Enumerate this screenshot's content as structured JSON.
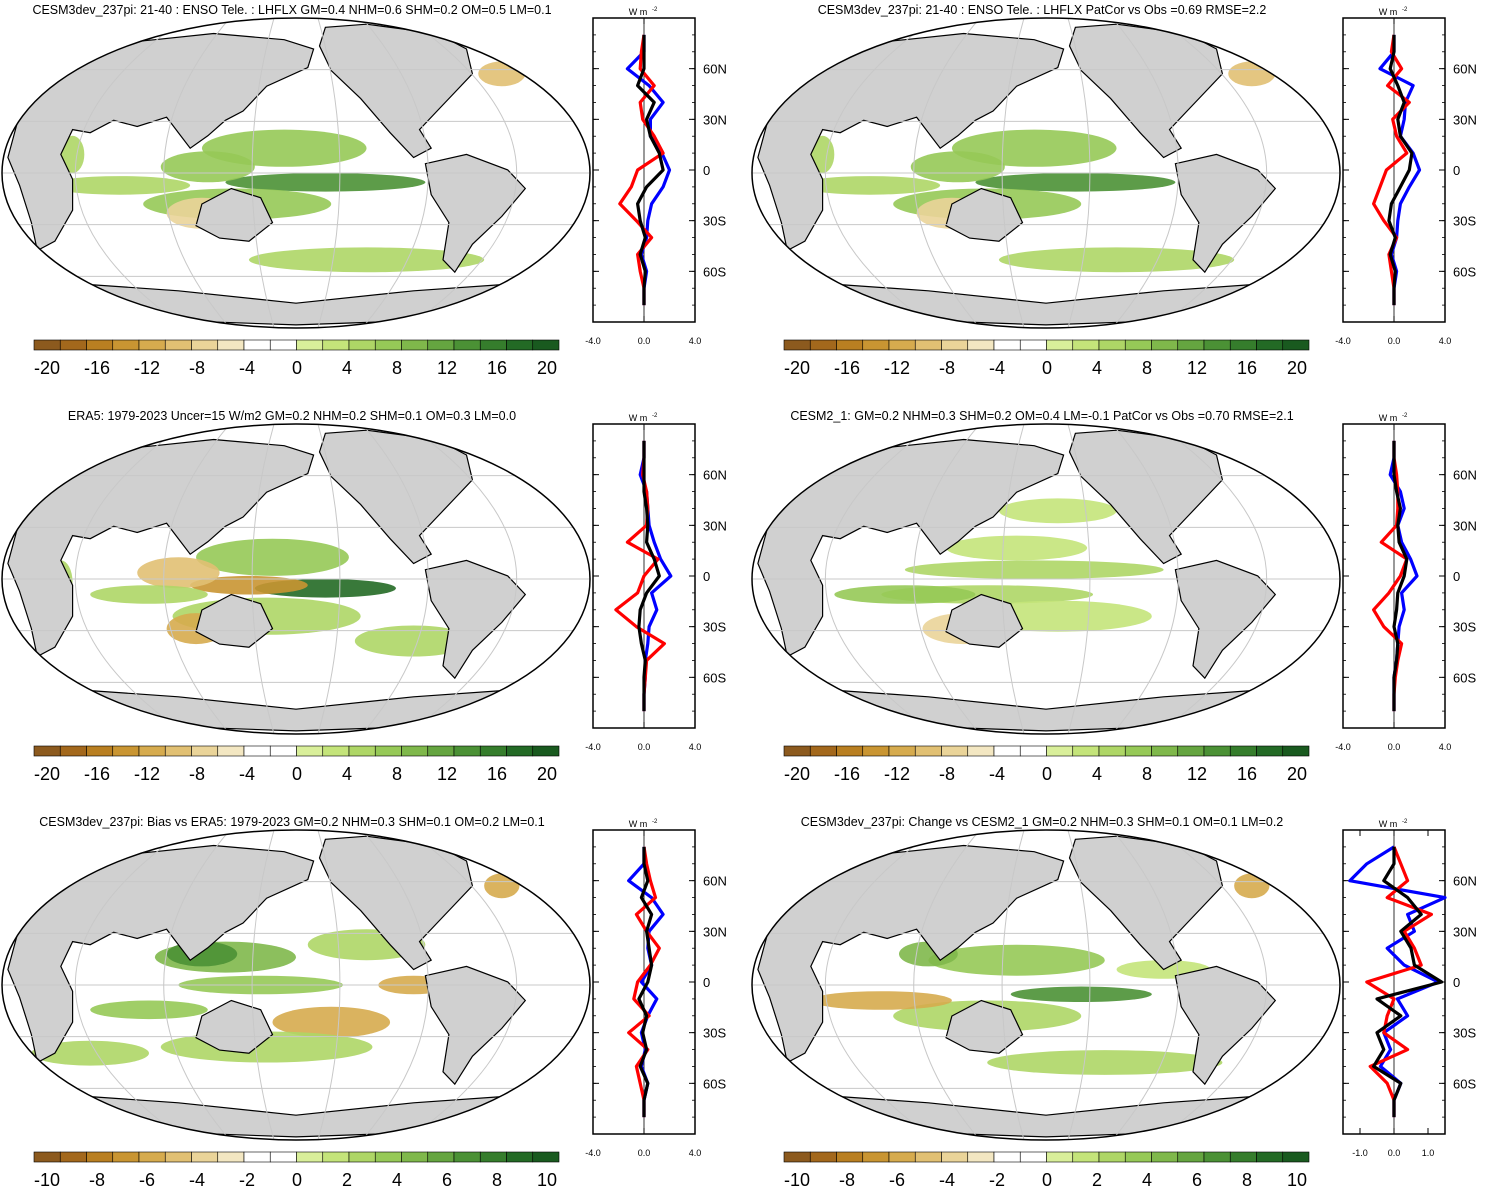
{
  "colors": {
    "land": "#d0d0d0",
    "grid": "#c8c8c8",
    "obs_line": "#0000ff",
    "model_line": "#000000",
    "change_line": "#ff0000",
    "palette": [
      "#8c5a1e",
      "#a3681c",
      "#b97f21",
      "#c99532",
      "#d6ab4e",
      "#e1c073",
      "#ead499",
      "#f3e7c2",
      "#ffffff",
      "#ffffff",
      "#d9ef9a",
      "#c4e47a",
      "#aed666",
      "#96c957",
      "#7fb84b",
      "#65a540",
      "#4b9135",
      "#357d2c",
      "#236a25",
      "#195a1f"
    ]
  },
  "panels": [
    {
      "id": "cesm3-lhflx",
      "title": "CESM3dev_237pi: 21-40 : ENSO Tele. : LHFLX GM=0.4 NHM=0.6 SHM=0.2 OM=0.5 LM=0.1",
      "colorbar_labels": [
        "-20",
        "-16",
        "-12",
        "-8",
        "-4",
        "0",
        "4",
        "8",
        "12",
        "16",
        "20"
      ],
      "lat_labels": [
        "60N",
        "30N",
        "0",
        "30S",
        "60S"
      ],
      "profile_unit": "W m",
      "profile_unit_sup": "-2",
      "profile_xticks": [
        "-4.0",
        "0.0",
        "4.0"
      ]
    },
    {
      "id": "cesm3-patcor",
      "title": "CESM3dev_237pi: 21-40 : ENSO Tele. : LHFLX PatCor vs Obs =0.69 RMSE=2.2",
      "colorbar_labels": [
        "-20",
        "-16",
        "-12",
        "-8",
        "-4",
        "0",
        "4",
        "8",
        "12",
        "16",
        "20"
      ],
      "lat_labels": [
        "60N",
        "30N",
        "0",
        "30S",
        "60S"
      ],
      "profile_unit": "W m",
      "profile_unit_sup": "-2",
      "profile_xticks": [
        "-4.0",
        "0.0",
        "4.0"
      ]
    },
    {
      "id": "era5",
      "title": "ERA5: 1979-2023 Uncer=15 W/m2 GM=0.2 NHM=0.2 SHM=0.1 OM=0.3 LM=0.0",
      "colorbar_labels": [
        "-20",
        "-16",
        "-12",
        "-8",
        "-4",
        "0",
        "4",
        "8",
        "12",
        "16",
        "20"
      ],
      "lat_labels": [
        "60N",
        "30N",
        "0",
        "30S",
        "60S"
      ],
      "profile_unit": "W m",
      "profile_unit_sup": "-2",
      "profile_xticks": [
        "-4.0",
        "0.0",
        "4.0"
      ]
    },
    {
      "id": "cesm2",
      "title": "CESM2_1: GM=0.2 NHM=0.3 SHM=0.2 OM=0.4 LM=-0.1 PatCor vs Obs =0.70 RMSE=2.1",
      "colorbar_labels": [
        "-20",
        "-16",
        "-12",
        "-8",
        "-4",
        "0",
        "4",
        "8",
        "12",
        "16",
        "20"
      ],
      "lat_labels": [
        "60N",
        "30N",
        "0",
        "30S",
        "60S"
      ],
      "profile_unit": "W m",
      "profile_unit_sup": "-2",
      "profile_xticks": [
        "-4.0",
        "0.0",
        "4.0"
      ]
    },
    {
      "id": "bias",
      "title": "CESM3dev_237pi: Bias vs ERA5: 1979-2023 GM=0.2 NHM=0.3 SHM=0.1 OM=0.2 LM=0.1",
      "colorbar_labels": [
        "-10",
        "-8",
        "-6",
        "-4",
        "-2",
        "0",
        "2",
        "4",
        "6",
        "8",
        "10"
      ],
      "lat_labels": [
        "60N",
        "30N",
        "0",
        "30S",
        "60S"
      ],
      "profile_unit": "W m",
      "profile_unit_sup": "-2",
      "profile_xticks": [
        "-4.0",
        "0.0",
        "4.0"
      ]
    },
    {
      "id": "change",
      "title": "CESM3dev_237pi: Change vs CESM2_1 GM=0.2 NHM=0.3 SHM=0.1 OM=0.1 LM=0.2",
      "colorbar_labels": [
        "-10",
        "-8",
        "-6",
        "-4",
        "-2",
        "0",
        "2",
        "4",
        "6",
        "8",
        "10"
      ],
      "lat_labels": [
        "60N",
        "30N",
        "0",
        "30S",
        "60S"
      ],
      "profile_unit": "W m",
      "profile_unit_sup": "-2",
      "profile_xticks": [
        "-1.0",
        "0.0",
        "1.0"
      ]
    }
  ],
  "chart_data": [
    {
      "type": "heatmap",
      "title": "CESM3dev_237pi: 21-40 : ENSO Tele. : LHFLX GM=0.4 NHM=0.6 SHM=0.2 OM=0.5 LM=0.1",
      "colorbar_range": [
        -20,
        20
      ],
      "colorbar_ticks": [
        -20,
        -16,
        -12,
        -8,
        -4,
        0,
        4,
        8,
        12,
        16,
        20
      ],
      "profile": {
        "lat": [
          80,
          70,
          60,
          50,
          40,
          30,
          20,
          10,
          0,
          -10,
          -20,
          -30,
          -40,
          -50,
          -60,
          -70,
          -80
        ],
        "xlim": [
          -4,
          4
        ],
        "series": [
          {
            "name": "black",
            "values": [
              0,
              0,
              0,
              -0.5,
              0.8,
              0.2,
              0.5,
              1.2,
              1.5,
              0.2,
              -0.5,
              -0.3,
              0.1,
              -0.3,
              0.1,
              0,
              0
            ]
          },
          {
            "name": "blue",
            "values": [
              0,
              0,
              -1.3,
              0.4,
              1.5,
              0.5,
              0.5,
              1.4,
              2.0,
              1.5,
              0.6,
              0.3,
              0.2,
              -0.2,
              0.2,
              0,
              0
            ]
          },
          {
            "name": "red",
            "values": [
              0,
              -0.2,
              -0.3,
              0.8,
              -0.3,
              -0.1,
              0.8,
              1.5,
              -0.5,
              -1.0,
              -1.9,
              -0.6,
              0.6,
              -0.5,
              -0.3,
              0,
              0
            ]
          }
        ]
      }
    },
    {
      "type": "heatmap",
      "title": "CESM3dev_237pi: 21-40 : ENSO Tele. : LHFLX PatCor vs Obs =0.69 RMSE=2.2",
      "colorbar_range": [
        -20,
        20
      ],
      "colorbar_ticks": [
        -20,
        -16,
        -12,
        -8,
        -4,
        0,
        4,
        8,
        12,
        16,
        20
      ],
      "profile": {
        "lat": [
          80,
          70,
          60,
          50,
          40,
          30,
          20,
          10,
          0,
          -10,
          -20,
          -30,
          -40,
          -50,
          -60,
          -70,
          -80
        ],
        "xlim": [
          -4,
          4
        ],
        "series": [
          {
            "name": "black",
            "values": [
              0,
              0,
              -0.3,
              0.3,
              0.8,
              0.3,
              0.5,
              1.4,
              1.2,
              0.5,
              -0.2,
              -0.4,
              0.1,
              -0.3,
              0.1,
              0,
              0
            ]
          },
          {
            "name": "blue",
            "values": [
              0,
              0,
              -1.1,
              1.5,
              0.9,
              0.8,
              0.5,
              1.5,
              2.0,
              1.2,
              0.5,
              0.3,
              0.2,
              -0.2,
              0.2,
              0,
              0
            ]
          },
          {
            "name": "red",
            "values": [
              0,
              -0.2,
              0.6,
              -0.5,
              1.2,
              -0.1,
              0.2,
              1.0,
              -0.6,
              -1.1,
              -1.6,
              -0.8,
              0.2,
              -0.4,
              -0.2,
              0,
              0
            ]
          }
        ]
      }
    },
    {
      "type": "heatmap",
      "title": "ERA5: 1979-2023 Uncer=15 W/m2 GM=0.2 NHM=0.2 SHM=0.1 OM=0.3 LM=0.0",
      "colorbar_range": [
        -20,
        20
      ],
      "colorbar_ticks": [
        -20,
        -16,
        -12,
        -8,
        -4,
        0,
        4,
        8,
        12,
        16,
        20
      ],
      "profile": {
        "lat": [
          80,
          70,
          60,
          50,
          40,
          30,
          20,
          10,
          0,
          -10,
          -20,
          -30,
          -40,
          -50,
          -60,
          -70,
          -80
        ],
        "xlim": [
          -4,
          4
        ],
        "series": [
          {
            "name": "black",
            "values": [
              0,
              0,
              0,
              0,
              0.2,
              0.3,
              0.2,
              0.8,
              1.2,
              0.2,
              -0.3,
              -0.4,
              -0.2,
              0.1,
              0,
              0,
              0
            ]
          },
          {
            "name": "blue",
            "values": [
              0,
              0,
              -0.3,
              0.2,
              0.3,
              0.4,
              0.8,
              1.3,
              2.1,
              0.6,
              1.0,
              0.4,
              0.3,
              0.1,
              0.1,
              0,
              0
            ]
          },
          {
            "name": "red",
            "values": [
              0,
              0,
              -0.1,
              0.2,
              0.3,
              0.2,
              -1.3,
              1.1,
              0,
              -0.5,
              -2.2,
              -0.6,
              1.6,
              0.2,
              0.1,
              0,
              0
            ]
          }
        ]
      }
    },
    {
      "type": "heatmap",
      "title": "CESM2_1: GM=0.2 NHM=0.3 SHM=0.2 OM=0.4 LM=-0.1 PatCor vs Obs =0.70 RMSE=2.1",
      "colorbar_range": [
        -20,
        20
      ],
      "colorbar_ticks": [
        -20,
        -16,
        -12,
        -8,
        -4,
        0,
        4,
        8,
        12,
        16,
        20
      ],
      "profile": {
        "lat": [
          80,
          70,
          60,
          50,
          40,
          30,
          20,
          10,
          0,
          -10,
          -20,
          -30,
          -40,
          -50,
          -60,
          -70,
          -80
        ],
        "xlim": [
          -4,
          4
        ],
        "series": [
          {
            "name": "black",
            "values": [
              0,
              0,
              0,
              0.2,
              0.5,
              0.3,
              0.4,
              1.0,
              0.8,
              0.3,
              0.2,
              0,
              0.3,
              0.2,
              0,
              0,
              0
            ]
          },
          {
            "name": "blue",
            "values": [
              0,
              0,
              -0.3,
              0.5,
              0.8,
              0.3,
              0.6,
              1.3,
              1.8,
              0.6,
              0.8,
              0.4,
              0.3,
              0.2,
              0,
              0,
              0
            ]
          },
          {
            "name": "red",
            "values": [
              0,
              0,
              0.2,
              0.3,
              0.3,
              0.2,
              -1.0,
              1.0,
              0.5,
              -0.4,
              -1.6,
              -0.8,
              0.6,
              0.3,
              0.1,
              0,
              0
            ]
          }
        ]
      }
    },
    {
      "type": "heatmap",
      "title": "CESM3dev_237pi: Bias vs ERA5: 1979-2023 GM=0.2 NHM=0.3 SHM=0.1 OM=0.2 LM=0.1",
      "colorbar_range": [
        -10,
        10
      ],
      "colorbar_ticks": [
        -10,
        -8,
        -6,
        -4,
        -2,
        0,
        2,
        4,
        6,
        8,
        10
      ],
      "profile": {
        "lat": [
          80,
          70,
          60,
          50,
          40,
          30,
          20,
          10,
          0,
          -10,
          -20,
          -30,
          -40,
          -50,
          -60,
          -70,
          -80
        ],
        "xlim": [
          -4,
          4
        ],
        "series": [
          {
            "name": "black",
            "values": [
              0,
              0,
              0.3,
              -0.2,
              0.6,
              0.2,
              0.4,
              0.6,
              0.3,
              -0.4,
              0.2,
              -0.1,
              0.2,
              -0.3,
              0.3,
              0,
              0
            ]
          },
          {
            "name": "blue",
            "values": [
              0,
              0,
              -1.2,
              0.6,
              1.5,
              0.4,
              0.3,
              0.6,
              -0.2,
              1.0,
              0.3,
              -0.2,
              0.1,
              -0.2,
              0.3,
              0,
              0
            ]
          },
          {
            "name": "red",
            "values": [
              0,
              0.2,
              0.5,
              0.9,
              -0.6,
              0.2,
              1.2,
              0.5,
              -0.5,
              -0.8,
              0.4,
              -1.2,
              0.3,
              -0.6,
              -0.3,
              0,
              0
            ]
          }
        ]
      }
    },
    {
      "type": "heatmap",
      "title": "CESM3dev_237pi: Change vs CESM2_1 GM=0.2 NHM=0.3 SHM=0.1 OM=0.1 LM=0.2",
      "colorbar_range": [
        -10,
        10
      ],
      "colorbar_ticks": [
        -10,
        -8,
        -6,
        -4,
        -2,
        0,
        2,
        4,
        6,
        8,
        10
      ],
      "profile": {
        "lat": [
          80,
          70,
          60,
          50,
          40,
          30,
          20,
          10,
          0,
          -10,
          -20,
          -30,
          -40,
          -50,
          -60,
          -70,
          -80
        ],
        "xlim": [
          -1.5,
          1.5
        ],
        "series": [
          {
            "name": "black",
            "values": [
              0,
              0,
              -0.3,
              0.4,
              0.8,
              0.2,
              0.5,
              0.6,
              1.4,
              -0.5,
              0.2,
              -0.5,
              -0.3,
              -0.6,
              0.2,
              0,
              0
            ]
          },
          {
            "name": "blue",
            "values": [
              0,
              -0.8,
              -1.3,
              1.5,
              0.4,
              0.6,
              -0.2,
              0.3,
              1.3,
              0.1,
              0.4,
              -0.3,
              -0.1,
              -0.4,
              0.2,
              0,
              0
            ]
          },
          {
            "name": "red",
            "values": [
              0,
              0.2,
              0.4,
              -0.2,
              1.1,
              0.3,
              0.6,
              0.8,
              -0.8,
              0,
              -0.2,
              -0.3,
              0.4,
              -0.7,
              -0.2,
              0,
              0
            ]
          }
        ]
      }
    }
  ]
}
